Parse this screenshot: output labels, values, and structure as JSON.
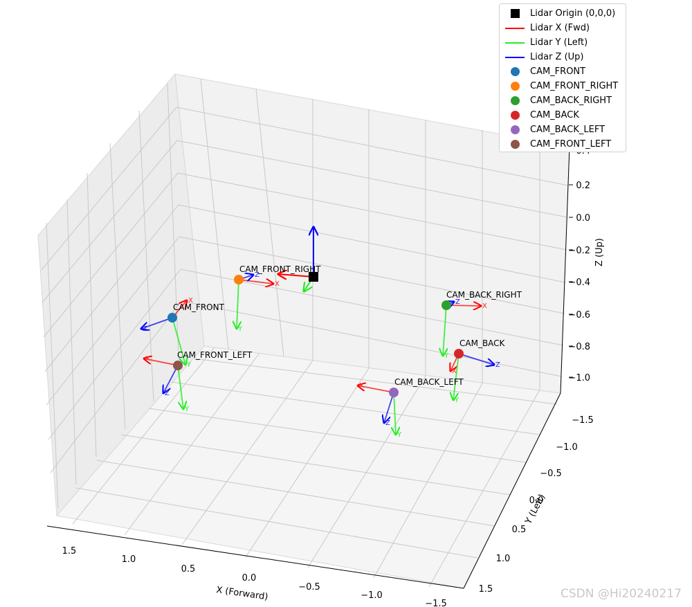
{
  "chart_data": {
    "type": "scatter3d",
    "xlabel": "X (Forward)",
    "ylabel": "Y (Left)",
    "zlabel": "Z (Up)",
    "xlim": [
      -1.6,
      1.6
    ],
    "ylim": [
      -1.6,
      1.6
    ],
    "zlim": [
      -1.1,
      0.45
    ],
    "x_ticks": [
      "1.5",
      "1.0",
      "0.5",
      "0.0",
      "−0.5",
      "−1.0",
      "−1.5"
    ],
    "y_ticks": [
      "−1.5",
      "−1.0",
      "−0.5",
      "0.0",
      "0.5",
      "1.0",
      "1.5"
    ],
    "z_ticks": [
      "0.4",
      "0.2",
      "0.0",
      "−0.2",
      "−0.4",
      "−0.6",
      "−0.8",
      "−1.0"
    ],
    "grid": true,
    "legend_position": "top-right",
    "lidar_origin": {
      "name": "Lidar Origin (0,0,0)",
      "x": 0,
      "y": 0,
      "z": 0
    },
    "lidar_axes": [
      {
        "name": "Lidar X (Fwd)",
        "color": "#ff0000"
      },
      {
        "name": "Lidar Y (Left)",
        "color": "#22ee22"
      },
      {
        "name": "Lidar Z (Up)",
        "color": "#0000ff"
      }
    ],
    "axis_tip_labels": {
      "x": "X",
      "y": "Y",
      "z": "Z"
    },
    "cameras": [
      {
        "name": "CAM_FRONT",
        "color": "#1f77b4",
        "x": 1.5,
        "y": 0.0,
        "z": -0.6
      },
      {
        "name": "CAM_FRONT_RIGHT",
        "color": "#ff7f0e",
        "x": 0.8,
        "y": -0.6,
        "z": -0.3
      },
      {
        "name": "CAM_BACK_RIGHT",
        "color": "#2ca02c",
        "x": -1.0,
        "y": -0.5,
        "z": -0.6
      },
      {
        "name": "CAM_BACK",
        "color": "#d62728",
        "x": -1.2,
        "y": 0.0,
        "z": -0.7
      },
      {
        "name": "CAM_BACK_LEFT",
        "color": "#9467bd",
        "x": -0.9,
        "y": 0.6,
        "z": -0.6
      },
      {
        "name": "CAM_FRONT_LEFT",
        "color": "#8c564b",
        "x": 1.0,
        "y": 0.6,
        "z": -0.6
      }
    ]
  },
  "watermark": "CSDN @Hi20240217"
}
